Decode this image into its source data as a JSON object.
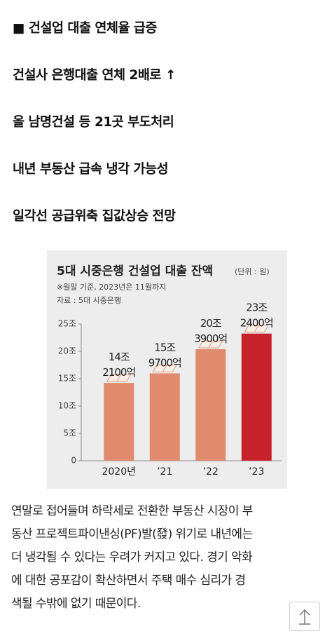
{
  "headlines": [
    "■ 건설업 대출 연체율 급증",
    "건설사 은행대출 연체 2배로 ↑",
    "올 남명건설 등 21곳 부도처리",
    "내년 부동산 급속 냉각 가능성",
    "일각선 공급위축 집값상승 전망"
  ],
  "chart_data": {
    "type": "bar",
    "title": "5대 시중은행 건설업 대출 잔액",
    "unit": "(단위 : 원)",
    "notes": [
      "※월말 기준, 2023년은 11월까지",
      "자료 : 5대 시중은행"
    ],
    "categories": [
      "2020년",
      "’21",
      "’22",
      "’23"
    ],
    "values": [
      14.21,
      15.97,
      20.39,
      23.24
    ],
    "value_labels": [
      [
        "14조",
        "2100억"
      ],
      [
        "15조",
        "9700억"
      ],
      [
        "20조",
        "3900억"
      ],
      [
        "23조",
        "2400억"
      ]
    ],
    "colors": [
      "#e08a6e",
      "#e08a6e",
      "#e08a6e",
      "#c7222b"
    ],
    "ylim": [
      0,
      25
    ],
    "yticks": [
      0,
      {
        "value": 5,
        "label": "5조"
      },
      {
        "value": 10,
        "label": "10조"
      },
      {
        "value": 15,
        "label": "15조"
      },
      {
        "value": 20,
        "label": "20조"
      },
      {
        "value": 25,
        "label": "25조"
      }
    ]
  },
  "body": [
    "연말로 접어들며 하락세로 전환한 부동산 시장이 부",
    "동산 프로젝트파이낸싱(PF)발(發) 위기로 내년에는",
    "더 냉각될 수 있다는 우려가 커지고 있다. 경기 악화",
    "에 대한 공포감이 확산하면서 주택 매수 심리가 경",
    "색될 수밖에 없기 때문이다."
  ]
}
